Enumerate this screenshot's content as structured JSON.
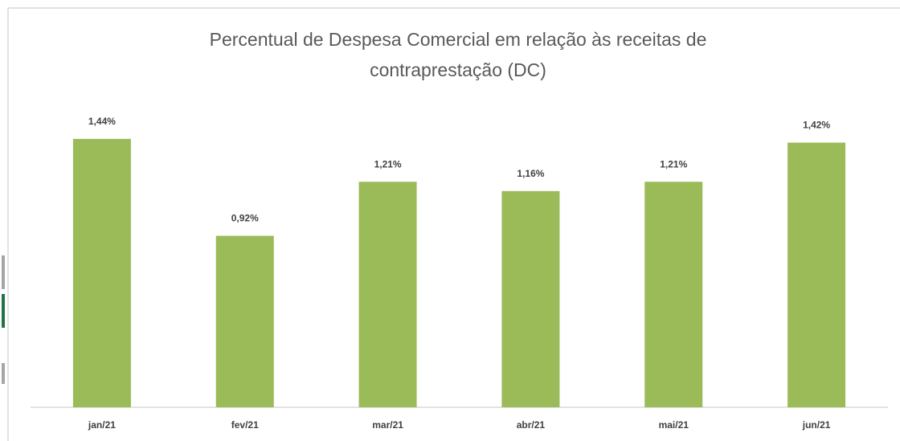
{
  "chart_data": {
    "type": "bar",
    "title": "Percentual de Despesa Comercial em relação às receitas de contraprestação (DC)",
    "categories": [
      "jan/21",
      "fev/21",
      "mar/21",
      "abr/21",
      "mai/21",
      "jun/21"
    ],
    "values": [
      1.44,
      0.92,
      1.21,
      1.16,
      1.21,
      1.42
    ],
    "value_labels": [
      "1,44%",
      "0,92%",
      "1,21%",
      "1,16%",
      "1,21%",
      "1,42%"
    ],
    "color": "#9bbb59"
  }
}
